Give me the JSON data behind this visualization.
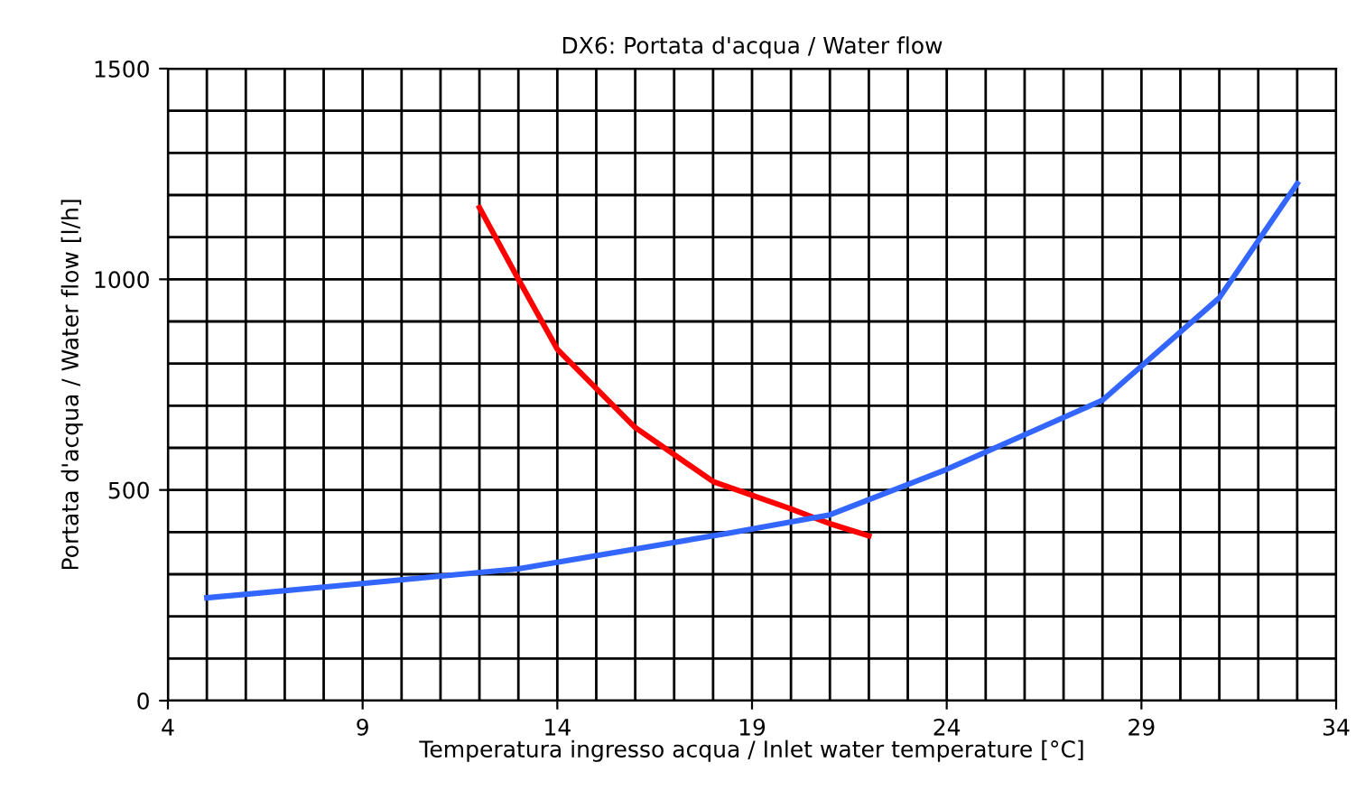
{
  "chart_data": {
    "type": "line",
    "title": "DX6: Portata d'acqua / Water flow",
    "xlabel": "Temperatura ingresso acqua / Inlet water temperature [°C]",
    "ylabel": "Portata d'acqua / Water flow [l/h]",
    "xlim": [
      4,
      34
    ],
    "xticks": [
      4,
      9,
      14,
      19,
      24,
      29,
      34
    ],
    "ylim": [
      0,
      1500
    ],
    "yticks": [
      0,
      500,
      1000,
      1500
    ],
    "grid": true,
    "marker": "none",
    "line_style": "solid",
    "series": [
      {
        "color": "#ff0000",
        "x": [
          12,
          13,
          14,
          16,
          18,
          20,
          21,
          22
        ],
        "values": [
          1170,
          1000,
          834,
          648,
          520,
          455,
          420,
          391
        ]
      },
      {
        "color": "#3366ff",
        "x": [
          5,
          9,
          13,
          18.5,
          21,
          22,
          24,
          28,
          31,
          33
        ],
        "values": [
          244,
          278,
          313,
          399,
          441,
          477,
          549,
          713,
          956,
          1227
        ]
      }
    ]
  }
}
